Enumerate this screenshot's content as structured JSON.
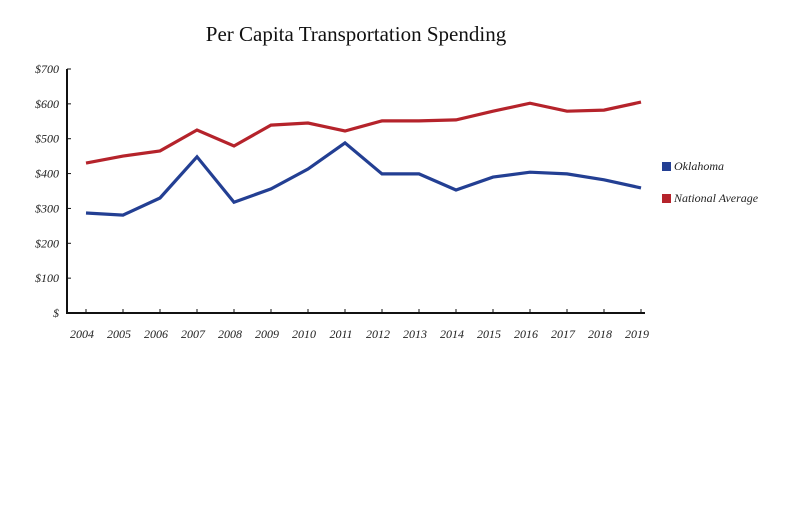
{
  "chart_data": {
    "type": "line",
    "title": "Per Capita Transportation Spending",
    "xlabel": "",
    "ylabel": "",
    "x": [
      "2004",
      "2005",
      "2006",
      "2007",
      "2008",
      "2009",
      "2010",
      "2011",
      "2012",
      "2013",
      "2014",
      "2015",
      "2016",
      "2017",
      "2018",
      "2019"
    ],
    "y_ticks": [
      0,
      100,
      200,
      300,
      400,
      500,
      600,
      700
    ],
    "y_tick_labels": [
      "$",
      "$100",
      "$200",
      "$300",
      "$400",
      "$500",
      "$600",
      "$700"
    ],
    "ylim": [
      0,
      700
    ],
    "grid": false,
    "legend_position": "right",
    "series": [
      {
        "name": "Oklahoma",
        "color": "#233f93",
        "values": [
          287,
          281,
          330,
          448,
          318,
          356,
          413,
          488,
          399,
          399,
          353,
          390,
          404,
          399,
          382,
          359
        ]
      },
      {
        "name": "National Average",
        "color": "#b5232b",
        "values": [
          430,
          450,
          465,
          525,
          479,
          539,
          545,
          522,
          551,
          551,
          554,
          579,
          602,
          579,
          582,
          605
        ]
      }
    ]
  }
}
